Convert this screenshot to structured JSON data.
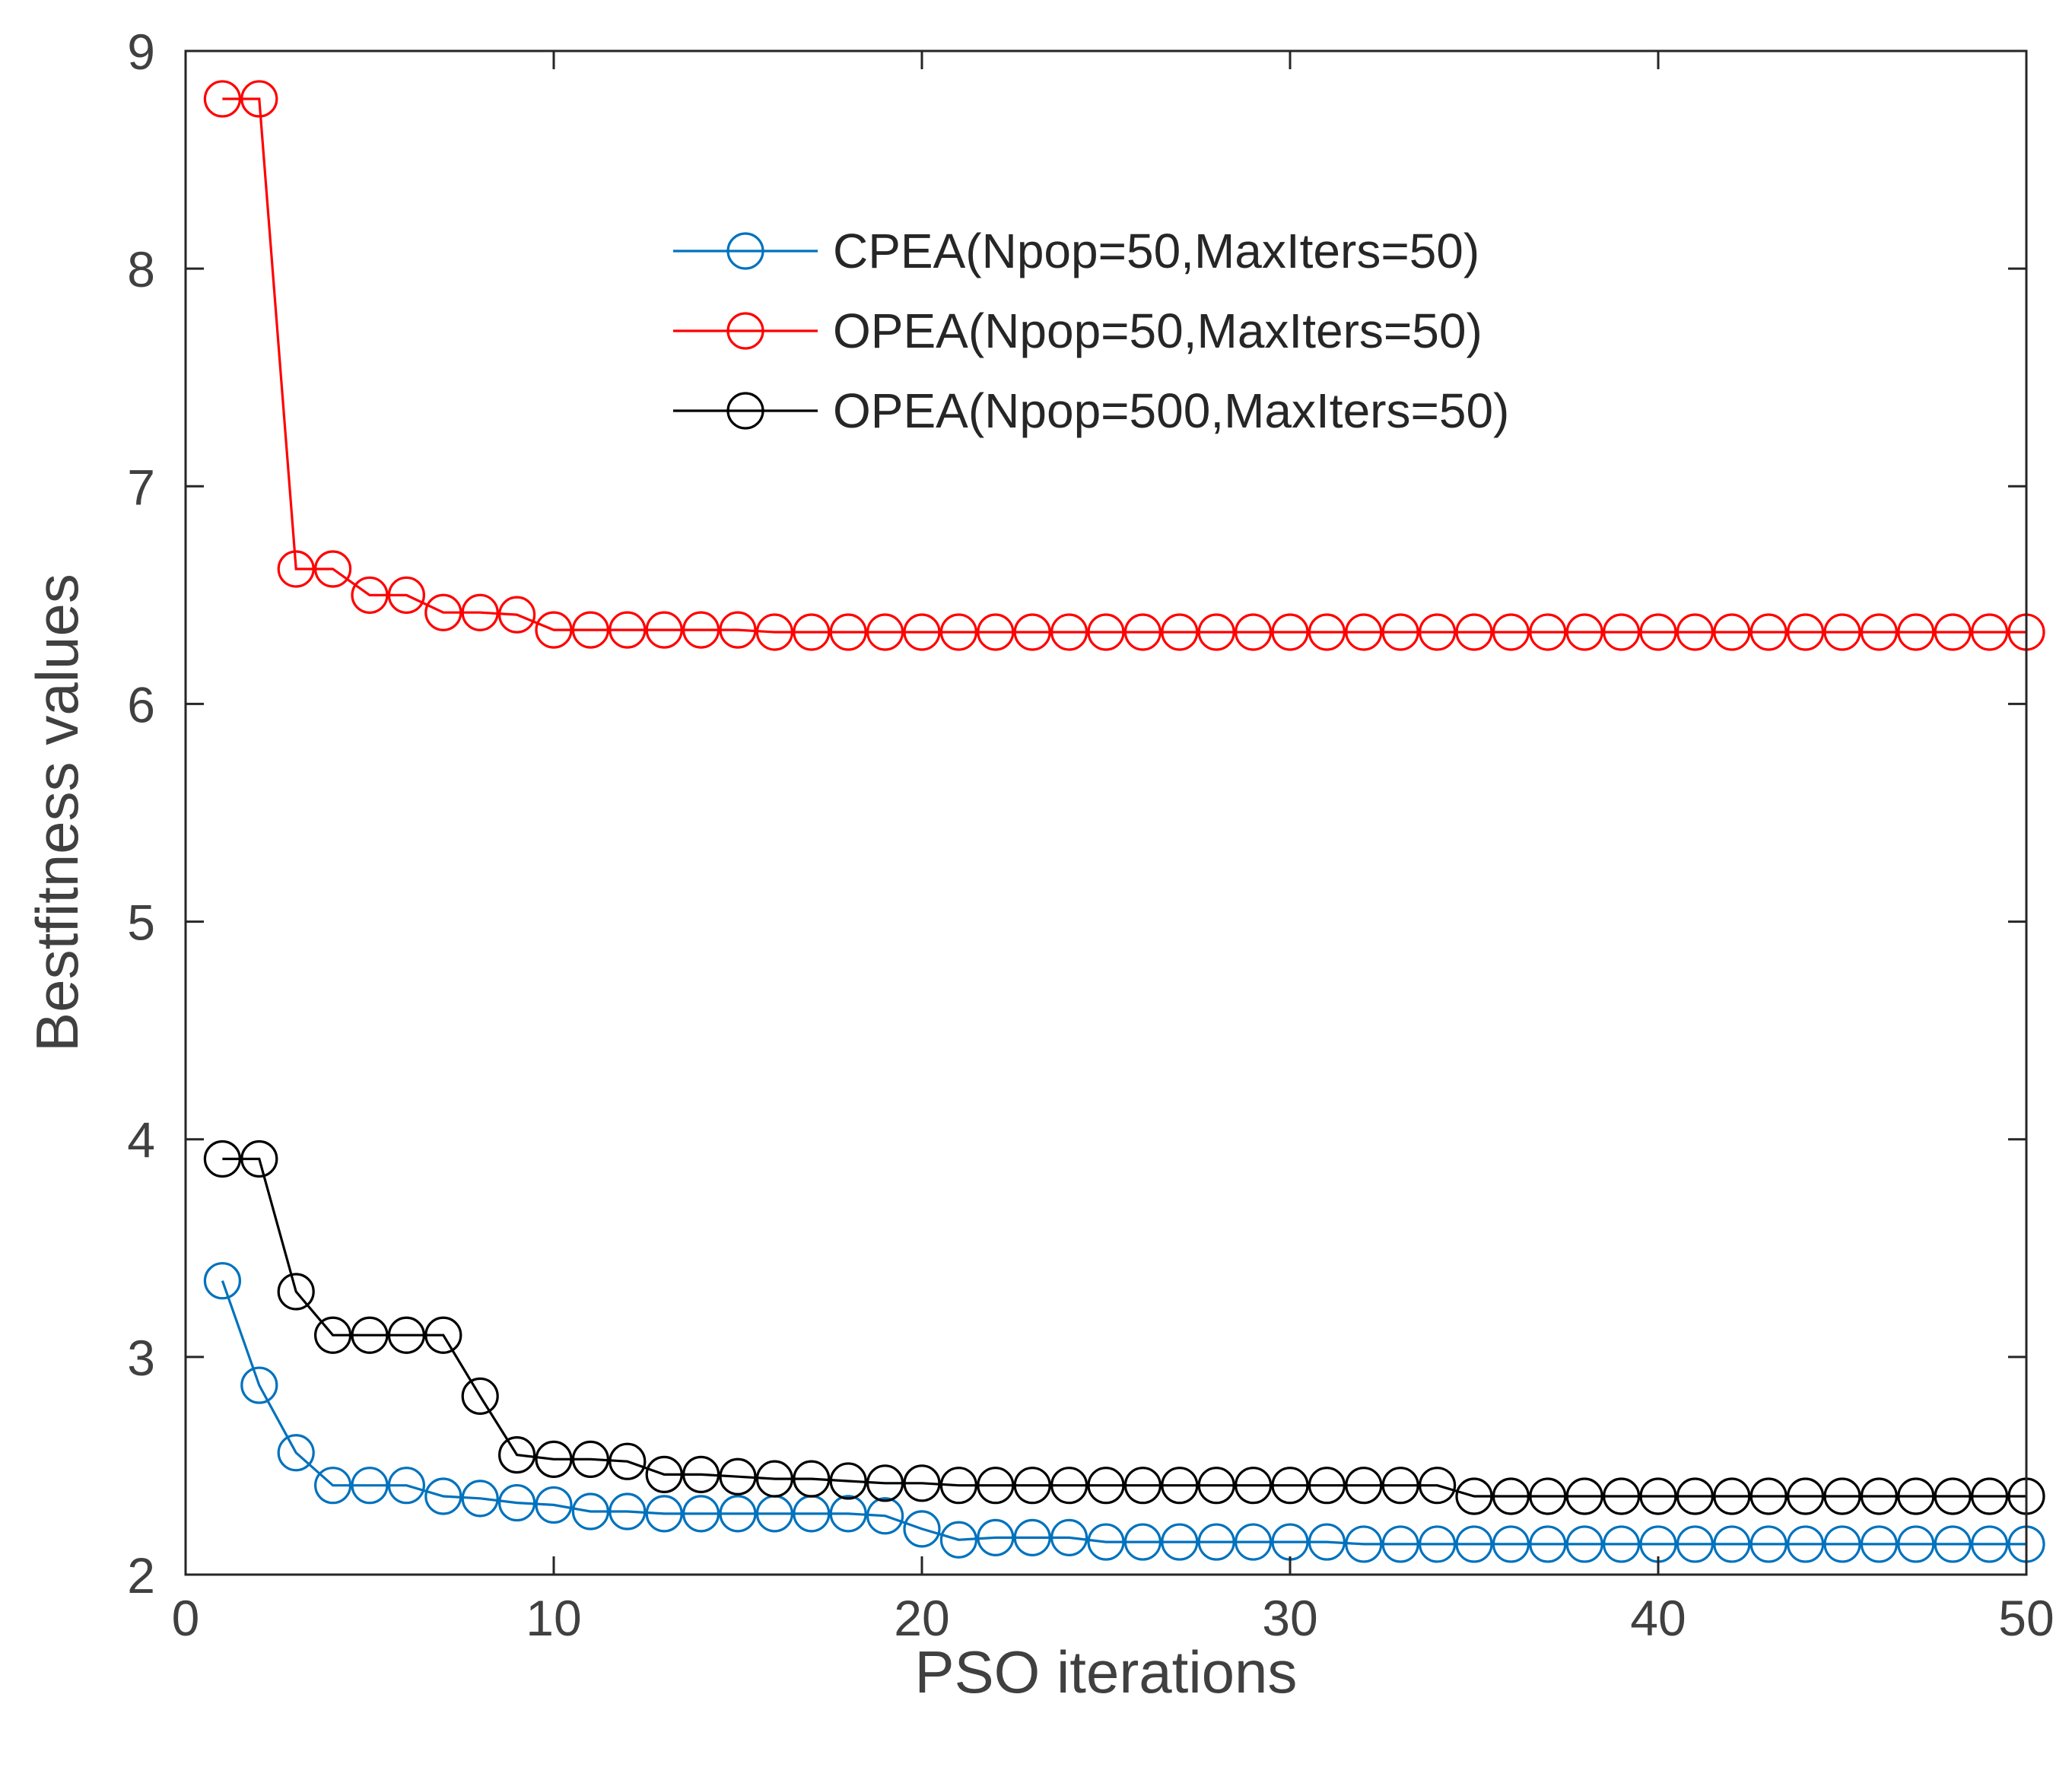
{
  "chart_data": {
    "type": "line",
    "title": "",
    "xlabel": "PSO iterations",
    "ylabel": "Bestfitness values",
    "xlim": [
      0,
      50
    ],
    "ylim": [
      2,
      9
    ],
    "xticks": [
      0,
      10,
      20,
      30,
      40,
      50
    ],
    "yticks": [
      2,
      3,
      4,
      5,
      6,
      7,
      8,
      9
    ],
    "grid": false,
    "legend_position": "top-center",
    "x": [
      1,
      2,
      3,
      4,
      5,
      6,
      7,
      8,
      9,
      10,
      11,
      12,
      13,
      14,
      15,
      16,
      17,
      18,
      19,
      20,
      21,
      22,
      23,
      24,
      25,
      26,
      27,
      28,
      29,
      30,
      31,
      32,
      33,
      34,
      35,
      36,
      37,
      38,
      39,
      40,
      41,
      42,
      43,
      44,
      45,
      46,
      47,
      48,
      49,
      50
    ],
    "series": [
      {
        "name": "CPEA(Npop=50,MaxIters=50)",
        "color": "#0072BD",
        "marker": "circle",
        "values": [
          3.35,
          2.87,
          2.56,
          2.41,
          2.41,
          2.41,
          2.36,
          2.35,
          2.33,
          2.32,
          2.29,
          2.29,
          2.28,
          2.28,
          2.28,
          2.28,
          2.28,
          2.28,
          2.27,
          2.21,
          2.16,
          2.17,
          2.17,
          2.17,
          2.15,
          2.15,
          2.15,
          2.15,
          2.15,
          2.15,
          2.15,
          2.14,
          2.14,
          2.14,
          2.14,
          2.14,
          2.14,
          2.14,
          2.14,
          2.14,
          2.14,
          2.14,
          2.14,
          2.14,
          2.14,
          2.14,
          2.14,
          2.14,
          2.14,
          2.14
        ]
      },
      {
        "name": "OPEA(Npop=50,MaxIters=50)",
        "color": "#FF0000",
        "marker": "circle",
        "values": [
          8.78,
          8.78,
          6.62,
          6.62,
          6.5,
          6.5,
          6.42,
          6.42,
          6.41,
          6.34,
          6.34,
          6.34,
          6.34,
          6.34,
          6.34,
          6.33,
          6.33,
          6.33,
          6.33,
          6.33,
          6.33,
          6.33,
          6.33,
          6.33,
          6.33,
          6.33,
          6.33,
          6.33,
          6.33,
          6.33,
          6.33,
          6.33,
          6.33,
          6.33,
          6.33,
          6.33,
          6.33,
          6.33,
          6.33,
          6.33,
          6.33,
          6.33,
          6.33,
          6.33,
          6.33,
          6.33,
          6.33,
          6.33,
          6.33,
          6.33
        ]
      },
      {
        "name": "OPEA(Npop=500,MaxIters=50)",
        "color": "#000000",
        "marker": "circle",
        "values": [
          3.91,
          3.91,
          3.3,
          3.1,
          3.1,
          3.1,
          3.1,
          2.82,
          2.55,
          2.53,
          2.53,
          2.52,
          2.46,
          2.46,
          2.45,
          2.44,
          2.44,
          2.43,
          2.42,
          2.42,
          2.41,
          2.41,
          2.41,
          2.41,
          2.41,
          2.41,
          2.41,
          2.41,
          2.41,
          2.41,
          2.41,
          2.41,
          2.41,
          2.41,
          2.36,
          2.36,
          2.36,
          2.36,
          2.36,
          2.36,
          2.36,
          2.36,
          2.36,
          2.36,
          2.36,
          2.36,
          2.36,
          2.36,
          2.36,
          2.36
        ]
      }
    ]
  }
}
